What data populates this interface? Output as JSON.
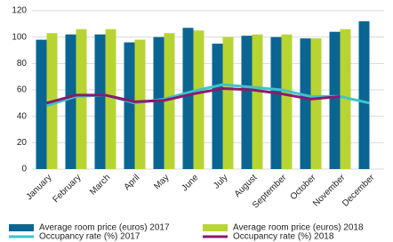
{
  "chart_data": {
    "type": "bar",
    "categories": [
      "January",
      "February",
      "March",
      "April",
      "May",
      "June",
      "July",
      "August",
      "September",
      "October",
      "November",
      "December"
    ],
    "series": [
      {
        "name": "Average room price (euros) 2017",
        "type": "bar",
        "color": "#0a6593",
        "values": [
          98,
          102,
          102,
          96,
          100,
          107,
          95,
          101,
          100,
          99,
          104,
          112
        ]
      },
      {
        "name": "Average room price (euros) 2018",
        "type": "bar",
        "color": "#b8d433",
        "values": [
          103,
          106,
          106,
          98,
          103,
          105,
          100,
          102,
          102,
          99,
          106,
          null
        ]
      },
      {
        "name": "Occupancy rate (%) 2017",
        "type": "line",
        "color": "#3ec3cc",
        "values": [
          48,
          55,
          56,
          50,
          53,
          59,
          64,
          62,
          60,
          55,
          55,
          50
        ]
      },
      {
        "name": "Occupancy rate (%) 2018",
        "type": "line",
        "color": "#8a1a6e",
        "values": [
          50,
          56,
          56,
          51,
          52,
          57,
          61,
          60,
          57,
          53,
          55,
          null
        ]
      }
    ],
    "ylim": [
      0,
      120
    ],
    "yticks": [
      0,
      20,
      40,
      60,
      80,
      100,
      120
    ],
    "grid": true
  }
}
